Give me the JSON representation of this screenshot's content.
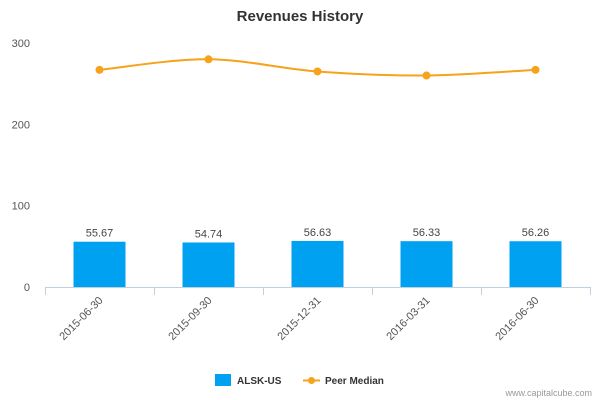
{
  "chart_data": {
    "type": "bar",
    "title": "Revenues History",
    "categories": [
      "2015-06-30",
      "2015-09-30",
      "2015-12-31",
      "2016-03-31",
      "2016-06-30"
    ],
    "series": [
      {
        "name": "ALSK-US",
        "type": "bar",
        "color": "#00a1f1",
        "values": [
          55.67,
          54.74,
          56.63,
          56.33,
          56.26
        ],
        "labels": [
          "55.67",
          "54.74",
          "56.63",
          "56.33",
          "56.26"
        ]
      },
      {
        "name": "Peer Median",
        "type": "line",
        "color": "#f7a21b",
        "values": [
          267,
          280,
          265,
          260,
          267
        ]
      }
    ],
    "y_ticks": [
      "0",
      "100",
      "200",
      "300"
    ],
    "ylim": [
      0,
      300
    ],
    "xlabel": "",
    "ylabel": "",
    "legend": "bottom-center",
    "grid": false
  },
  "credit": "www.capitalcube.com"
}
